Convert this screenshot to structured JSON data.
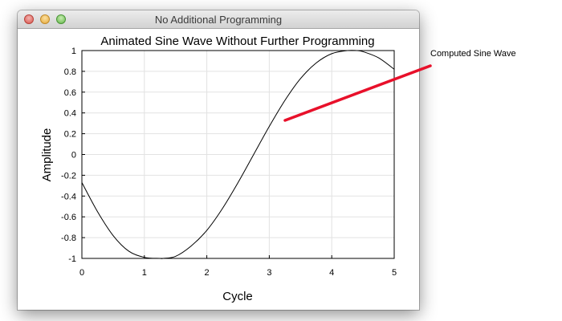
{
  "window": {
    "title": "No Additional Programming"
  },
  "annotation": {
    "text": "Computed Sine Wave",
    "color": "#e8102a"
  },
  "chart_data": {
    "type": "line",
    "title": "Animated Sine Wave Without Further Programming",
    "xlabel": "Cycle",
    "ylabel": "Amplitude",
    "xlim": [
      0,
      5
    ],
    "ylim": [
      -1,
      1
    ],
    "x_ticks": [
      "0",
      "1",
      "2",
      "3",
      "4",
      "5"
    ],
    "y_ticks": [
      "-1",
      "-0.8",
      "-0.6",
      "-0.4",
      "-0.2",
      "0",
      "0.2",
      "0.4",
      "0.6",
      "0.8",
      "1"
    ],
    "grid": true,
    "series": [
      {
        "color": "#000000",
        "x": [
          0,
          0.25,
          0.5,
          0.75,
          1.0,
          1.25,
          1.3,
          1.5,
          1.75,
          2.0,
          2.25,
          2.5,
          2.75,
          3.0,
          3.25,
          3.5,
          3.75,
          4.0,
          4.25,
          4.4,
          4.5,
          4.75,
          5.0
        ],
        "y": [
          -0.27,
          -0.55,
          -0.78,
          -0.93,
          -0.99,
          -1.0,
          -1.0,
          -0.98,
          -0.88,
          -0.73,
          -0.52,
          -0.27,
          0.0,
          0.27,
          0.52,
          0.73,
          0.88,
          0.97,
          1.0,
          1.0,
          0.99,
          0.93,
          0.82
        ]
      }
    ]
  }
}
